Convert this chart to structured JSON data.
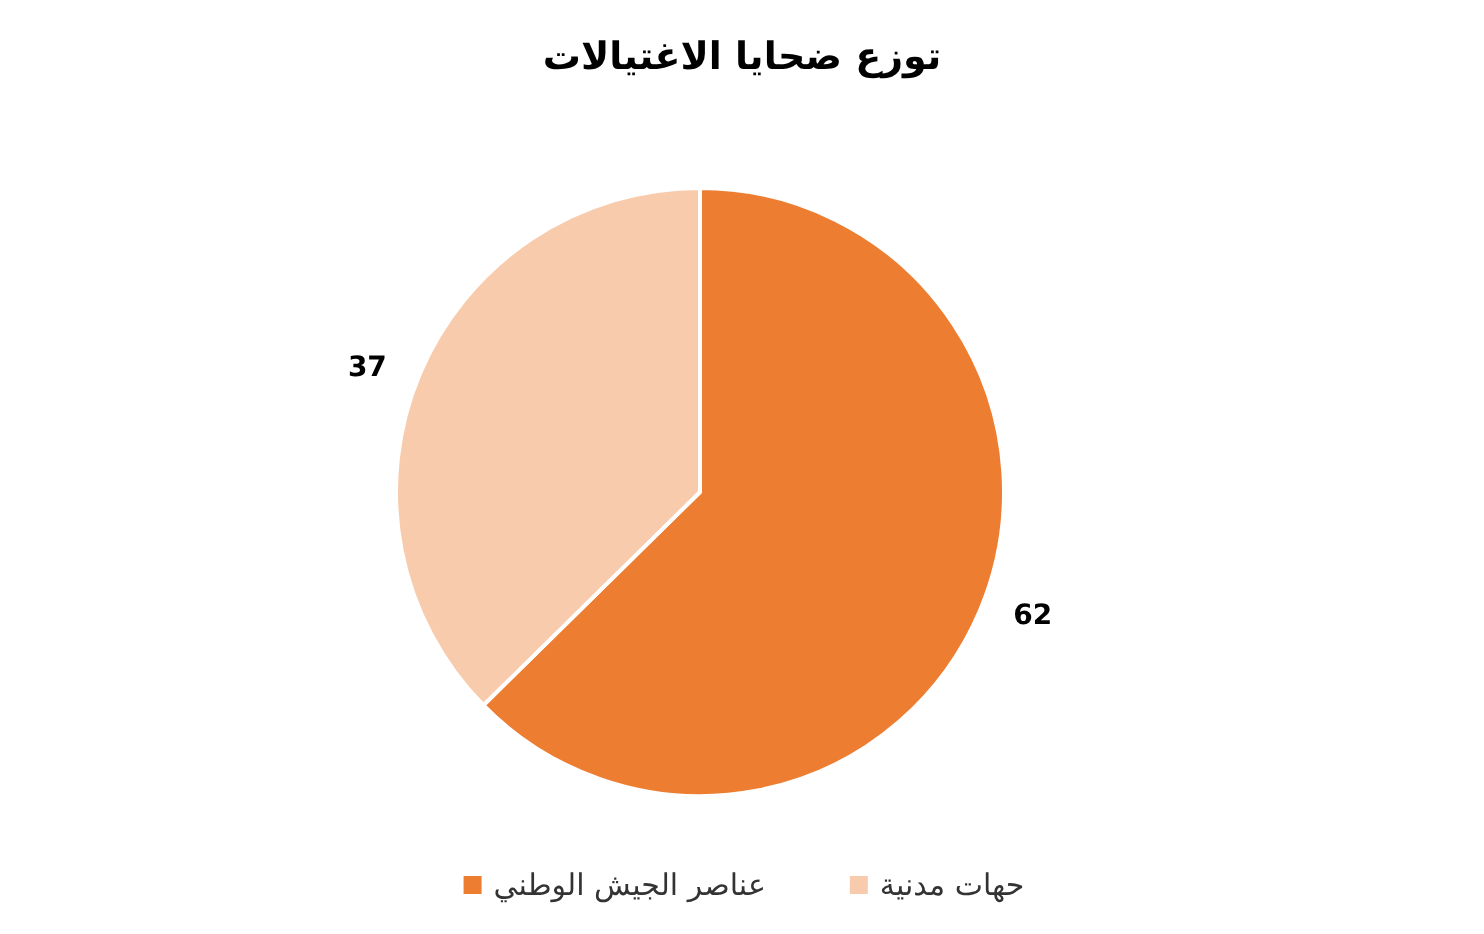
{
  "chart_data": {
    "type": "pie",
    "title": "توزع ضحايا الاغتيالات",
    "categories": [
      "عناصر الجيش الوطني",
      "حهات مدنية"
    ],
    "values": [
      62,
      37
    ],
    "colors": [
      "#ed7d31",
      "#f8cbad"
    ],
    "data_labels": true,
    "legend": "bottom"
  }
}
